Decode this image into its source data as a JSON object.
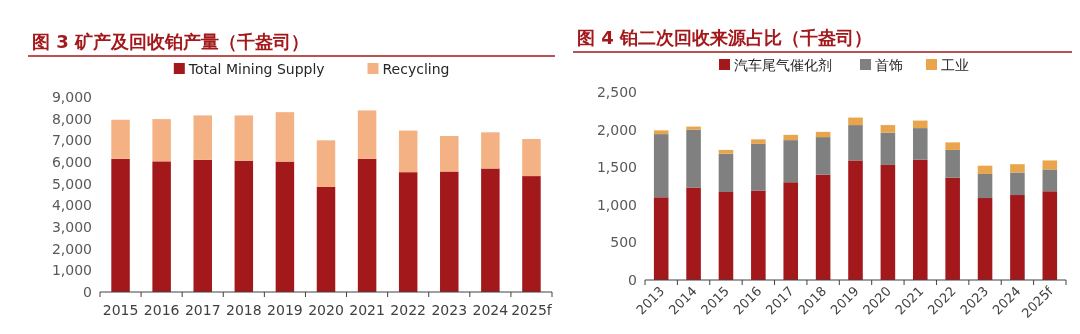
{
  "chart_data": [
    {
      "type": "bar",
      "title": "图 3 矿产及回收铂产量（千盎司）",
      "categories": [
        "2015",
        "2016",
        "2017",
        "2018",
        "2019",
        "2020",
        "2021",
        "2022",
        "2023",
        "2024",
        "2025f"
      ],
      "stacked": true,
      "legend": "top",
      "ylim": [
        0,
        9000
      ],
      "yticks": [
        {
          "value": 0,
          "label": "0"
        },
        {
          "value": 1000,
          "label": "1,000"
        },
        {
          "value": 2000,
          "label": "2,000"
        },
        {
          "value": 3000,
          "label": "3,000"
        },
        {
          "value": 4000,
          "label": "4,000"
        },
        {
          "value": 5000,
          "label": "5,000"
        },
        {
          "value": 6000,
          "label": "6,000"
        },
        {
          "value": 7000,
          "label": "7,000"
        },
        {
          "value": 8000,
          "label": "8,000"
        },
        {
          "value": 9000,
          "label": "9,000"
        }
      ],
      "series": [
        {
          "name": "Total Mining Supply",
          "color": "#a3181b",
          "values": [
            6150,
            6030,
            6100,
            6060,
            6020,
            4850,
            6150,
            5530,
            5560,
            5700,
            5350
          ]
        },
        {
          "name": "Recycling",
          "color": "#f4b183",
          "values": [
            1800,
            1950,
            2050,
            2090,
            2280,
            2150,
            2230,
            1920,
            1640,
            1670,
            1710
          ]
        }
      ]
    },
    {
      "type": "bar",
      "title": "图 4 铂二次回收来源占比（千盎司）",
      "categories": [
        "2013",
        "2014",
        "2015",
        "2016",
        "2017",
        "2018",
        "2019",
        "2020",
        "2021",
        "2022",
        "2023",
        "2024",
        "2025f"
      ],
      "stacked": true,
      "legend": "top",
      "ylim": [
        0,
        2500
      ],
      "yticks": [
        {
          "value": 0,
          "label": "0"
        },
        {
          "value": 500,
          "label": "500"
        },
        {
          "value": 1000,
          "label": "1,000"
        },
        {
          "value": 1500,
          "label": "1,500"
        },
        {
          "value": 2000,
          "label": "2,000"
        },
        {
          "value": 2500,
          "label": "2,500"
        }
      ],
      "series": [
        {
          "name": "汽车尾气催化剂",
          "color": "#a3181b",
          "values": [
            1100,
            1230,
            1170,
            1190,
            1300,
            1400,
            1590,
            1530,
            1600,
            1360,
            1090,
            1130,
            1180
          ]
        },
        {
          "name": "首饰",
          "color": "#808080",
          "values": [
            840,
            770,
            510,
            620,
            560,
            500,
            470,
            430,
            420,
            370,
            320,
            300,
            290
          ]
        },
        {
          "name": "工业",
          "color": "#e9a54c",
          "values": [
            50,
            40,
            50,
            60,
            70,
            70,
            100,
            100,
            100,
            100,
            110,
            110,
            120
          ]
        }
      ]
    }
  ]
}
